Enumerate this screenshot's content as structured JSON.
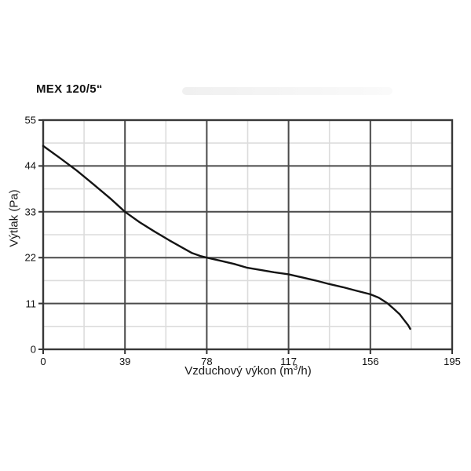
{
  "page": {
    "background": "#ffffff"
  },
  "chart_data": {
    "type": "line",
    "title": "MEX 120/5“",
    "xlabel": "Vzduchový výkon (m³/h)",
    "xlabel_parts": {
      "pre": "Vzduchový výkon (m",
      "sup": "3",
      "post": "/h)"
    },
    "ylabel": "Výtlak (Pa)",
    "xlim": [
      0,
      195
    ],
    "ylim": [
      0,
      55
    ],
    "x_ticks": [
      0,
      39,
      78,
      117,
      156,
      195
    ],
    "y_ticks": [
      0,
      11,
      22,
      33,
      44,
      55
    ],
    "x_minor_ticks": [
      19.5,
      58.5,
      97.5,
      136.5,
      175.5
    ],
    "y_minor_ticks": [
      5.5,
      16.5,
      27.5,
      38.5,
      49.5
    ],
    "grid": "major+minor",
    "legend": "none",
    "series": [
      {
        "name": "MEX 120/5",
        "points": [
          [
            0,
            48.8
          ],
          [
            8,
            45.9
          ],
          [
            16,
            42.9
          ],
          [
            24,
            39.6
          ],
          [
            32,
            36.2
          ],
          [
            39,
            33.0
          ],
          [
            46,
            30.5
          ],
          [
            53,
            28.3
          ],
          [
            60,
            26.2
          ],
          [
            66,
            24.5
          ],
          [
            71,
            23.1
          ],
          [
            75,
            22.4
          ],
          [
            78,
            22.0
          ],
          [
            85,
            21.2
          ],
          [
            91,
            20.5
          ],
          [
            97,
            19.6
          ],
          [
            104,
            19.0
          ],
          [
            110,
            18.5
          ],
          [
            117,
            18.0
          ],
          [
            124,
            17.2
          ],
          [
            130,
            16.5
          ],
          [
            136,
            15.7
          ],
          [
            143,
            14.9
          ],
          [
            149,
            14.1
          ],
          [
            156,
            13.2
          ],
          [
            160,
            12.4
          ],
          [
            164,
            11.1
          ],
          [
            167,
            9.8
          ],
          [
            170,
            8.4
          ],
          [
            172,
            7.1
          ],
          [
            174,
            5.8
          ],
          [
            175,
            4.9
          ]
        ]
      }
    ],
    "colors": {
      "curve": "#141414",
      "major_grid": "#4a4a4a",
      "minor_grid": "#dcdcdc",
      "axis": "#383838",
      "tick": "#333333",
      "text": "#111111"
    }
  }
}
